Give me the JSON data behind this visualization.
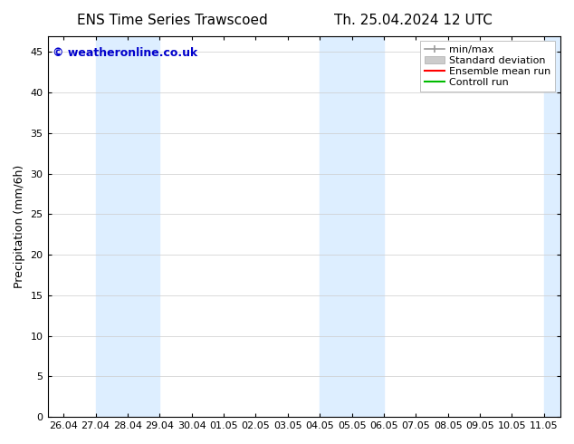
{
  "title_left": "ENS Time Series Trawscoed",
  "title_right": "Th. 25.04.2024 12 UTC",
  "ylabel": "Precipitation (mm/6h)",
  "watermark": "© weatheronline.co.uk",
  "background_color": "#ffffff",
  "plot_bg_color": "#ffffff",
  "shaded_regions": [
    {
      "xstart": 1.0,
      "xend": 3.0,
      "color": "#ddeeff"
    },
    {
      "xstart": 8.0,
      "xend": 10.0,
      "color": "#ddeeff"
    },
    {
      "xstart": 15.0,
      "xend": 15.5,
      "color": "#ddeeff"
    }
  ],
  "x_tick_labels": [
    "26.04",
    "27.04",
    "28.04",
    "29.04",
    "30.04",
    "01.05",
    "02.05",
    "03.05",
    "04.05",
    "05.05",
    "06.05",
    "07.05",
    "08.05",
    "09.05",
    "10.05",
    "11.05"
  ],
  "x_tick_positions": [
    0,
    1,
    2,
    3,
    4,
    5,
    6,
    7,
    8,
    9,
    10,
    11,
    12,
    13,
    14,
    15
  ],
  "ylim": [
    0,
    47
  ],
  "yticks": [
    0,
    5,
    10,
    15,
    20,
    25,
    30,
    35,
    40,
    45
  ],
  "xlim": [
    -0.5,
    15.5
  ],
  "title_fontsize": 11,
  "label_fontsize": 9,
  "tick_fontsize": 8,
  "watermark_color": "#0000cc",
  "grid_color": "#cccccc",
  "legend_fontsize": 8,
  "minmax_color": "#999999",
  "std_color": "#cccccc",
  "ensemble_color": "#ff0000",
  "control_color": "#00bb00"
}
